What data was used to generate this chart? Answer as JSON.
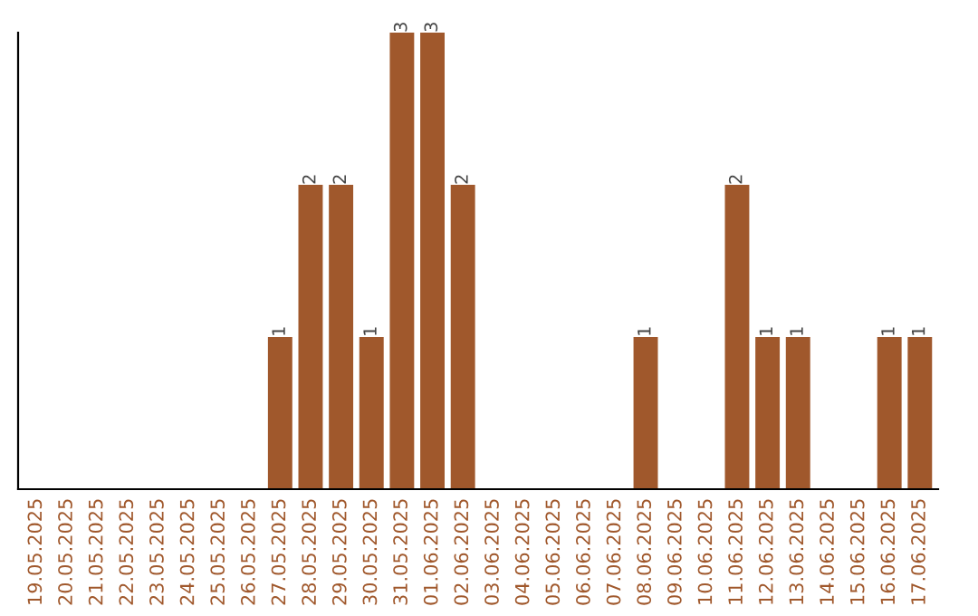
{
  "chart_data": {
    "type": "bar",
    "categories": [
      "19.05.2025",
      "20.05.2025",
      "21.05.2025",
      "22.05.2025",
      "23.05.2025",
      "24.05.2025",
      "25.05.2025",
      "26.05.2025",
      "27.05.2025",
      "28.05.2025",
      "29.05.2025",
      "30.05.2025",
      "31.05.2025",
      "01.06.2025",
      "02.06.2025",
      "03.06.2025",
      "04.06.2025",
      "05.06.2025",
      "06.06.2025",
      "07.06.2025",
      "08.06.2025",
      "09.06.2025",
      "10.06.2025",
      "11.06.2025",
      "12.06.2025",
      "13.06.2025",
      "14.06.2025",
      "15.06.2025",
      "16.06.2025",
      "17.06.2025"
    ],
    "values": [
      0,
      0,
      0,
      0,
      0,
      0,
      0,
      0,
      1,
      2,
      2,
      1,
      3,
      3,
      2,
      0,
      0,
      0,
      0,
      0,
      1,
      0,
      0,
      2,
      1,
      1,
      0,
      0,
      1,
      1
    ],
    "value_labels": [
      null,
      null,
      null,
      null,
      null,
      null,
      null,
      null,
      "1",
      "2",
      "2",
      "1",
      "3",
      "3",
      "2",
      null,
      null,
      null,
      null,
      null,
      "1",
      null,
      null,
      "2",
      "1",
      "1",
      null,
      null,
      "1",
      "1"
    ],
    "color": "#a0582c",
    "ylim": [
      0,
      3
    ],
    "tick_labels": "x",
    "grid": false
  }
}
